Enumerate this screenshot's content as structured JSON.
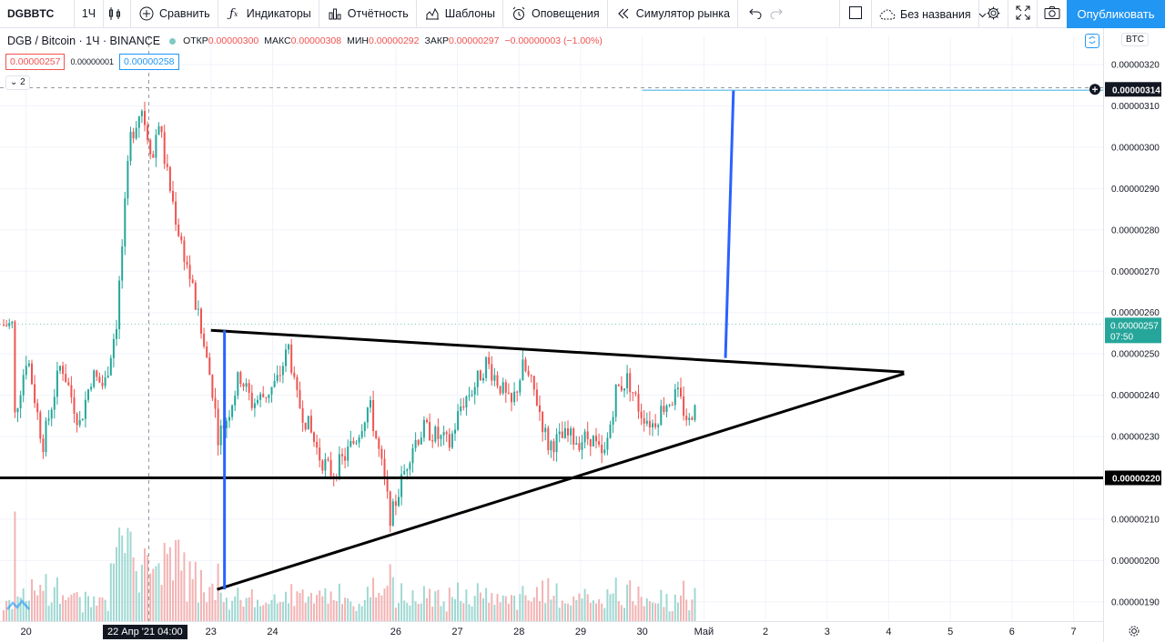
{
  "toolbar": {
    "symbol": "DGBBTC",
    "timeframe": "1Ч",
    "compare": "Сравнить",
    "indicators": "Индикаторы",
    "financials": "Отчётность",
    "templates": "Шаблоны",
    "alerts": "Оповещения",
    "replay": "Симулятор рынка",
    "layout_name": "Без названия",
    "publish": "Опубликовать"
  },
  "legend": {
    "title": "DGB / Bitcoin · 1Ч · BINANCE",
    "open_label": "ОТКР",
    "open": "0.00000300",
    "high_label": "МАКС",
    "high": "0.00000308",
    "low_label": "МИН",
    "low": "0.00000292",
    "close_label": "ЗАКР",
    "close": "0.00000297",
    "change": "−0.00000003 (−1.00%)"
  },
  "order": {
    "sell": "0.00000257",
    "spread": "0.00000001",
    "buy": "0.00000258"
  },
  "collapse_count": "2",
  "currency_button": "BTC",
  "crosshair_date": "22 Апр '21  04:00",
  "colors": {
    "up": "#26a69a",
    "down": "#ef5350",
    "vol_up": "#80cbc4",
    "vol_down": "#ef9a9a",
    "drawing_black": "#000000",
    "drawing_blue": "#2962ff",
    "target_line": "#4db6e6",
    "accent": "#2196f3"
  },
  "chart_data": {
    "type": "candlestick",
    "symbol": "DGB / Bitcoin",
    "interval": "1Ч",
    "exchange": "BINANCE",
    "y_axis": {
      "range": [
        1.855e-06,
        3.222e-06
      ],
      "ticks": [
        "0.00000190",
        "0.00000200",
        "0.00000210",
        "0.00000220",
        "0.00000230",
        "0.00000240",
        "0.00000250",
        "0.00000260",
        "0.00000270",
        "0.00000280",
        "0.00000290",
        "0.00000300",
        "0.00000310",
        "0.00000320"
      ]
    },
    "x_axis": {
      "ticks": [
        "20",
        "23",
        "24",
        "26",
        "27",
        "28",
        "29",
        "30",
        "Май",
        "2",
        "3",
        "4",
        "5",
        "6",
        "7"
      ],
      "tick_days": [
        20,
        23,
        24,
        26,
        27,
        28,
        29,
        30,
        31,
        32,
        33,
        34,
        35,
        36,
        37
      ]
    },
    "price_labels": [
      {
        "value": "0.00000314",
        "kind": "target"
      },
      {
        "value": "0.00000257",
        "kind": "last",
        "countdown": "07:50"
      },
      {
        "value": "0.00000220",
        "kind": "horizontal_line"
      }
    ],
    "path_points": [
      [
        19.85,
        2.35
      ],
      [
        20.05,
        2.5
      ],
      [
        20.3,
        2.28
      ],
      [
        20.6,
        2.48
      ],
      [
        20.9,
        2.33
      ],
      [
        21.1,
        2.45
      ],
      [
        21.3,
        2.42
      ],
      [
        21.5,
        2.58
      ],
      [
        21.62,
        2.82
      ],
      [
        21.72,
        3.02
      ],
      [
        21.9,
        3.1
      ],
      [
        22.1,
        2.97
      ],
      [
        22.17,
        3.08
      ],
      [
        22.3,
        2.95
      ],
      [
        22.5,
        2.8
      ],
      [
        22.7,
        2.68
      ],
      [
        22.9,
        2.53
      ],
      [
        23.05,
        2.42
      ],
      [
        23.15,
        2.3
      ],
      [
        23.3,
        2.35
      ],
      [
        23.5,
        2.45
      ],
      [
        23.7,
        2.38
      ],
      [
        23.9,
        2.4
      ],
      [
        24.1,
        2.43
      ],
      [
        24.3,
        2.52
      ],
      [
        24.4,
        2.4
      ],
      [
        24.6,
        2.33
      ],
      [
        24.8,
        2.25
      ],
      [
        25.0,
        2.21
      ],
      [
        25.2,
        2.25
      ],
      [
        25.4,
        2.3
      ],
      [
        25.6,
        2.38
      ],
      [
        25.8,
        2.23
      ],
      [
        25.95,
        2.1
      ],
      [
        26.1,
        2.18
      ],
      [
        26.3,
        2.28
      ],
      [
        26.5,
        2.32
      ],
      [
        26.7,
        2.3
      ],
      [
        26.9,
        2.28
      ],
      [
        27.1,
        2.38
      ],
      [
        27.3,
        2.42
      ],
      [
        27.5,
        2.48
      ],
      [
        27.7,
        2.43
      ],
      [
        27.9,
        2.37
      ],
      [
        28.1,
        2.47
      ],
      [
        28.3,
        2.4
      ],
      [
        28.5,
        2.28
      ],
      [
        28.8,
        2.3
      ],
      [
        29.0,
        2.29
      ],
      [
        29.2,
        2.3
      ],
      [
        29.4,
        2.24
      ],
      [
        29.5,
        2.32
      ],
      [
        29.6,
        2.41
      ],
      [
        29.8,
        2.44
      ],
      [
        30.0,
        2.36
      ],
      [
        30.2,
        2.33
      ],
      [
        30.4,
        2.38
      ],
      [
        30.6,
        2.4
      ],
      [
        30.8,
        2.33
      ],
      [
        30.92,
        2.42
      ],
      [
        31.02,
        2.47
      ],
      [
        31.12,
        2.52
      ],
      [
        31.18,
        2.57
      ]
    ],
    "volume_scale": "relative",
    "drawings": [
      {
        "kind": "triangle_upper",
        "points": [
          [
            23.0,
            2.557
          ],
          [
            34.25,
            2.456
          ]
        ]
      },
      {
        "kind": "triangle_lower",
        "points": [
          [
            23.1,
            1.93
          ],
          [
            34.25,
            2.452
          ]
        ]
      },
      {
        "kind": "horizontal_line",
        "price": 2.2
      },
      {
        "kind": "vertical_measure",
        "points": [
          [
            23.22,
            1.93
          ],
          [
            23.22,
            2.557
          ]
        ]
      },
      {
        "kind": "breakout_projection",
        "points": [
          [
            31.35,
            2.49
          ],
          [
            31.48,
            3.138
          ]
        ]
      },
      {
        "kind": "target_line",
        "price": 3.138,
        "from": 30.0
      }
    ]
  }
}
